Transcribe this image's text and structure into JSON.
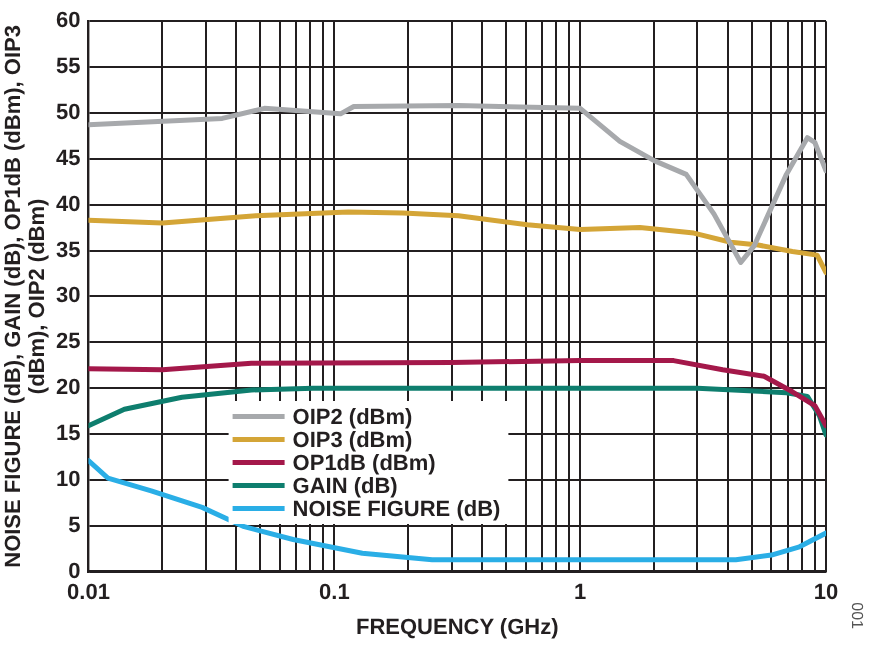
{
  "chart_data": {
    "type": "line",
    "xlabel": "FREQUENCY (GHz)",
    "ylabel": "NOISE FIGURE (dB), GAIN (dB), OP1dB (dBm), OIP3 (dBm), OIP2 (dBm)",
    "log": "x",
    "xlim": [
      0.01,
      10
    ],
    "ylim": [
      0,
      60
    ],
    "xticks": [
      0.01,
      {
        "value": 0.02,
        "label": null
      },
      {
        "value": 0.03,
        "label": null
      },
      {
        "value": 0.04,
        "label": null
      },
      {
        "value": 0.05,
        "label": null
      },
      {
        "value": 0.06,
        "label": null
      },
      {
        "value": 0.07,
        "label": null
      },
      {
        "value": 0.08,
        "label": null
      },
      {
        "value": 0.09,
        "label": null
      },
      0.1,
      {
        "value": 0.2,
        "label": null
      },
      {
        "value": 0.3,
        "label": null
      },
      {
        "value": 0.4,
        "label": null
      },
      {
        "value": 0.5,
        "label": null
      },
      {
        "value": 0.6,
        "label": null
      },
      {
        "value": 0.7,
        "label": null
      },
      {
        "value": 0.8,
        "label": null
      },
      {
        "value": 0.9,
        "label": null
      },
      1,
      {
        "value": 2,
        "label": null
      },
      {
        "value": 3,
        "label": null
      },
      {
        "value": 4,
        "label": null
      },
      {
        "value": 5,
        "label": null
      },
      {
        "value": 6,
        "label": null
      },
      {
        "value": 7,
        "label": null
      },
      {
        "value": 8,
        "label": null
      },
      {
        "value": 9,
        "label": null
      },
      10
    ],
    "yticks": [
      0,
      5,
      10,
      15,
      20,
      25,
      30,
      35,
      40,
      45,
      50,
      55,
      60
    ],
    "grid": true,
    "legend": "bottom left",
    "marker": "none",
    "line_style": "solid",
    "annotations": [
      "001"
    ],
    "series": [
      {
        "name": "OIP2 (dBm)",
        "color": "#a7a9ac",
        "x": [
          0.01,
          0.035,
          0.052,
          0.106,
          0.12,
          0.32,
          1.0,
          1.45,
          2.0,
          2.7,
          3.5,
          4.5,
          5.1,
          6.9,
          8.4,
          9.0,
          10
        ],
        "values": [
          48.7,
          49.4,
          50.5,
          49.9,
          50.7,
          50.8,
          50.5,
          46.9,
          44.8,
          43.3,
          39,
          33.7,
          35.5,
          43.3,
          47.3,
          46.8,
          43.7
        ]
      },
      {
        "name": "OIP3 (dBm)",
        "color": "#d4a537",
        "x": [
          0.01,
          0.02,
          0.048,
          0.114,
          0.19,
          0.32,
          0.61,
          1.0,
          1.75,
          2.9,
          4.1,
          5.3,
          7.3,
          9.2,
          10
        ],
        "values": [
          38.3,
          38.0,
          38.8,
          39.2,
          39.1,
          38.8,
          37.8,
          37.3,
          37.5,
          36.9,
          35.9,
          35.6,
          34.9,
          34.5,
          32.6
        ]
      },
      {
        "name": "OP1dB (dBm)",
        "color": "#a4184a",
        "x": [
          0.01,
          0.02,
          0.046,
          0.3,
          1.0,
          2.4,
          3.8,
          5.6,
          7.3,
          9.0,
          10
        ],
        "values": [
          22.1,
          22.0,
          22.7,
          22.8,
          23.0,
          23.0,
          22.0,
          21.3,
          19.6,
          18.1,
          15.9
        ]
      },
      {
        "name": "GAIN (dB)",
        "color": "#0e7e6e",
        "x": [
          0.01,
          0.014,
          0.024,
          0.046,
          0.082,
          0.3,
          1.0,
          3.0,
          6.9,
          8.4,
          9.4,
          10
        ],
        "values": [
          15.9,
          17.7,
          19.0,
          19.8,
          20.0,
          20.0,
          20.0,
          20.0,
          19.5,
          19.1,
          17,
          14.9
        ]
      },
      {
        "name": "NOISE FIGURE (dB)",
        "color": "#2aaee6",
        "x": [
          0.01,
          0.012,
          0.018,
          0.029,
          0.043,
          0.068,
          0.13,
          0.25,
          0.5,
          1.0,
          4.3,
          6.0,
          7.8,
          10
        ],
        "values": [
          12.1,
          10.2,
          8.8,
          7.0,
          4.9,
          3.5,
          2.0,
          1.3,
          1.3,
          1.3,
          1.3,
          1.8,
          2.7,
          4.2
        ]
      }
    ]
  }
}
